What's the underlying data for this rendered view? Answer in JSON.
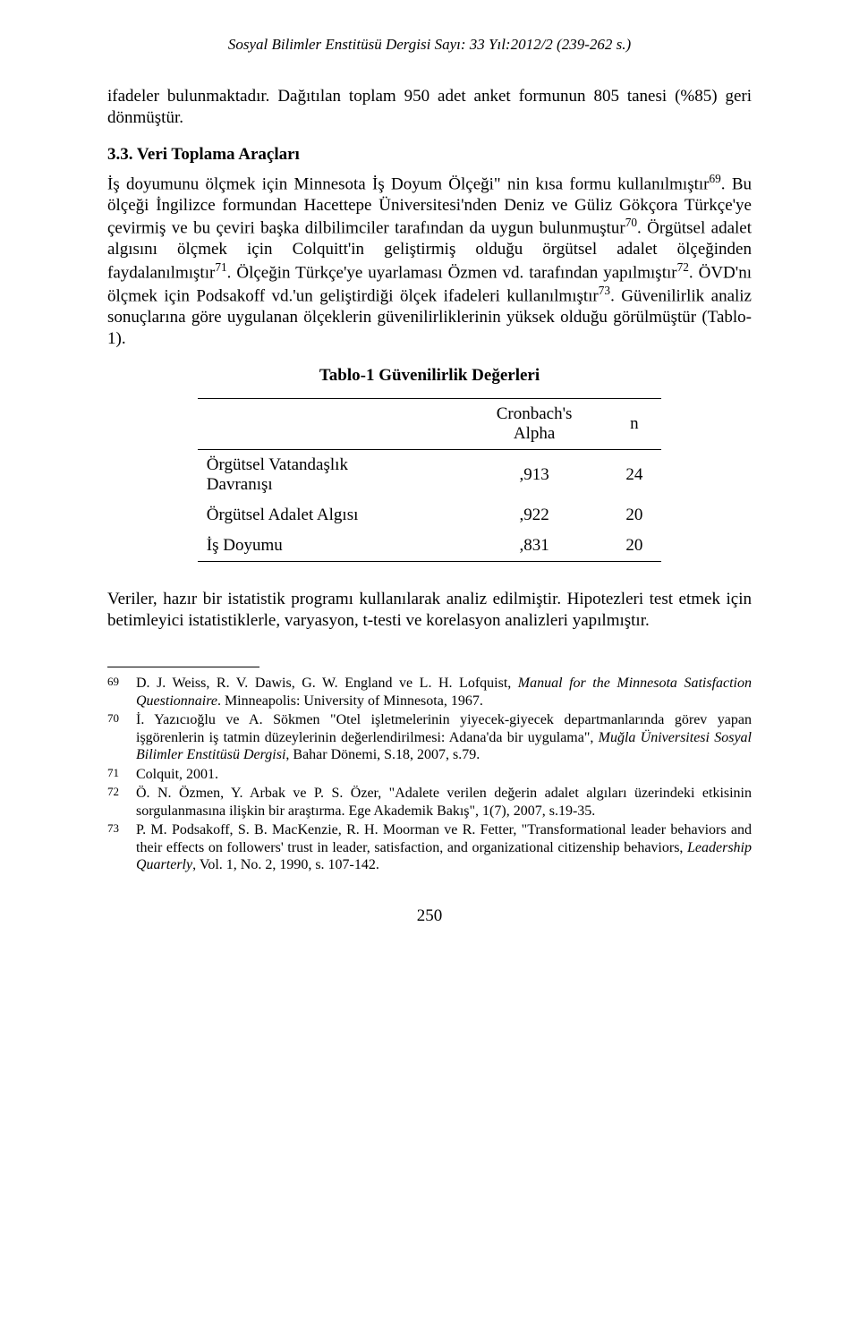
{
  "typography": {
    "body_font": "Times New Roman",
    "body_size_pt": 12,
    "header_size_pt": 11,
    "footnote_size_pt": 10,
    "text_color": "#000000",
    "background_color": "#ffffff"
  },
  "running_header": "Sosyal Bilimler Enstitüsü Dergisi Sayı: 33 Yıl:2012/2 (239-262 s.)",
  "para1_part1": "ifadeler bulunmaktadır. Dağıtılan toplam 950 adet anket formunun 805 tanesi (%85) geri dönmüştür.",
  "section_heading": "3.3. Veri Toplama Araçları",
  "para2": {
    "t1": "İş doyumunu ölçmek için Minnesota İş Doyum Ölçeği\" nin kısa formu kullanılmıştır",
    "s1": "69",
    "t2": ". Bu ölçeği İngilizce formundan Hacettepe Üniversitesi'nden Deniz ve Güliz Gökçora Türkçe'ye çevirmiş ve bu çeviri başka dilbilimciler tarafından da uygun bulunmuştur",
    "s2": "70",
    "t3": ". Örgütsel adalet algısını ölçmek için Colquitt'in geliştirmiş olduğu örgütsel adalet ölçeğinden faydalanılmıştır",
    "s3": "71",
    "t4": ". Ölçeğin Türkçe'ye uyarlaması Özmen vd. tarafından yapılmıştır",
    "s4": "72",
    "t5": ". ÖVD'nı ölçmek için Podsakoff vd.'un geliştirdiği ölçek ifadeleri kullanılmıştır",
    "s5": "73",
    "t6": ". Güvenilirlik analiz sonuçlarına göre uygulanan ölçeklerin güvenilirliklerinin yüksek olduğu görülmüştür (Tablo-1)."
  },
  "table": {
    "type": "table",
    "title": "Tablo-1 Güvenilirlik Değerleri",
    "columns": [
      "",
      "Cronbach's Alpha",
      "n"
    ],
    "header_line1_col2": "Cronbach's",
    "header_line2_col2": "Alpha",
    "header_col3": "n",
    "rows": [
      {
        "label_line1": "Örgütsel Vatandaşlık",
        "label_line2": "Davranışı",
        "alpha": ",913",
        "n": "24"
      },
      {
        "label_line1": "Örgütsel Adalet Algısı",
        "label_line2": "",
        "alpha": ",922",
        "n": "20"
      },
      {
        "label_line1": "İş Doyumu",
        "label_line2": "",
        "alpha": ",831",
        "n": "20"
      }
    ],
    "border_color": "#000000",
    "col_align": [
      "left",
      "center",
      "center"
    ]
  },
  "para3": "Veriler, hazır bir istatistik programı kullanılarak analiz edilmiştir. Hipotezleri test etmek için betimleyici istatistiklerle, varyasyon, t-testi ve korelasyon analizleri yapılmıştır.",
  "footnotes": [
    {
      "num": "69",
      "plain1": "D. J. Weiss, R. V. Dawis, G. W. England ve L. H. Lofquist, ",
      "italic1": "Manual for the Minnesota Satisfaction Questionnaire",
      "plain2": ". Minneapolis: University of Minnesota, 1967."
    },
    {
      "num": "70",
      "plain1": "İ. Yazıcıoğlu ve A. Sökmen \"Otel işletmelerinin yiyecek-giyecek departmanlarında görev yapan işgörenlerin iş tatmin düzeylerinin değerlendirilmesi: Adana'da bir uygulama\", ",
      "italic1": "Muğla Üniversitesi Sosyal Bilimler Enstitüsü Dergisi",
      "plain2": ", Bahar Dönemi, S.18, 2007, s.79."
    },
    {
      "num": "71",
      "plain1": "Colquit, 2001.",
      "italic1": "",
      "plain2": ""
    },
    {
      "num": "72",
      "plain1": "Ö. N. Özmen, Y. Arbak ve P. S.  Özer, \"Adalete verilen değerin adalet algıları üzerindeki etkisinin sorgulanmasına ilişkin bir araştırma. Ege Akademik Bakış\", 1(7), 2007, s.19-35.",
      "italic1": "",
      "plain2": ""
    },
    {
      "num": "73",
      "plain1": "P. M. Podsakoff, S. B. MacKenzie, R. H. Moorman ve R. Fetter, \"Transformational leader behaviors and their effects on followers' trust in leader, satisfaction, and organizational citizenship behaviors, ",
      "italic1": "Leadership Quarterly",
      "plain2": ", Vol. 1, No. 2, 1990, s. 107-142."
    }
  ],
  "page_number": "250"
}
